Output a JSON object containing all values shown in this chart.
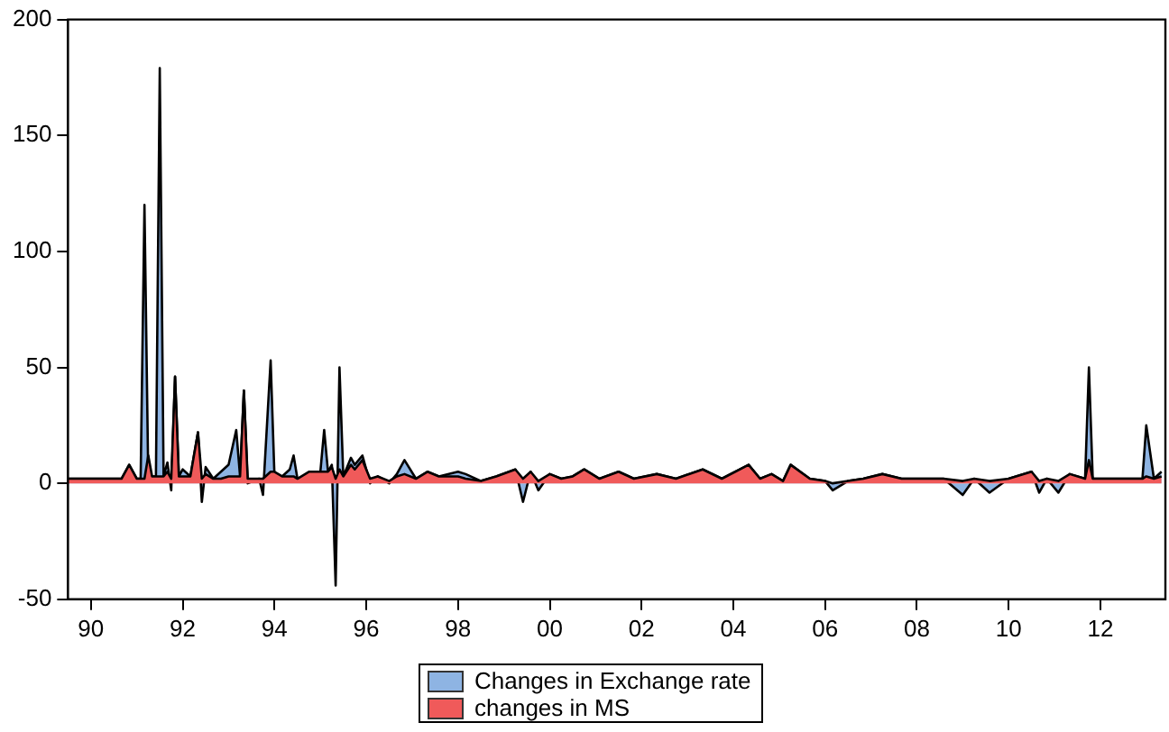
{
  "chart_data": {
    "type": "area",
    "x": [
      "1990-01",
      "1990-07",
      "1991-03",
      "1991-05",
      "1991-07",
      "1991-08",
      "1991-09",
      "1991-10",
      "1991-11",
      "1991-12",
      "1992-01",
      "1992-02",
      "1992-03",
      "1992-04",
      "1992-05",
      "1992-06",
      "1992-07",
      "1992-09",
      "1992-11",
      "1992-12",
      "1993-01",
      "1993-03",
      "1993-05",
      "1993-07",
      "1993-09",
      "1993-10",
      "1993-11",
      "1993-12",
      "1994-03",
      "1994-04",
      "1994-06",
      "1994-07",
      "1994-09",
      "1994-11",
      "1994-12",
      "1995-01",
      "1995-04",
      "1995-07",
      "1995-08",
      "1995-09",
      "1995-10",
      "1995-11",
      "1995-12",
      "1996-01",
      "1996-03",
      "1996-04",
      "1996-06",
      "1996-08",
      "1996-10",
      "1997-01",
      "1997-03",
      "1997-05",
      "1997-08",
      "1997-11",
      "1998-02",
      "1998-07",
      "1998-09",
      "1999-01",
      "1999-05",
      "1999-10",
      "1999-12",
      "2000-02",
      "2000-04",
      "2000-07",
      "2000-10",
      "2001-01",
      "2001-04",
      "2001-08",
      "2002-01",
      "2002-05",
      "2002-11",
      "2003-04",
      "2003-11",
      "2004-04",
      "2004-11",
      "2005-02",
      "2005-05",
      "2005-08",
      "2005-10",
      "2006-03",
      "2006-07",
      "2006-09",
      "2007-01",
      "2007-05",
      "2007-10",
      "2008-03",
      "2008-09",
      "2009-02",
      "2009-07",
      "2009-10",
      "2010-02",
      "2010-07",
      "2011-01",
      "2011-03",
      "2011-05",
      "2011-08",
      "2011-11",
      "2012-03",
      "2012-04",
      "2012-05",
      "2012-10",
      "2013-03",
      "2013-06",
      "2013-07",
      "2013-09",
      "2013-11"
    ],
    "xlim": [
      "1990-01",
      "2013-12"
    ],
    "xticks": [
      {
        "value": "1990-07",
        "label": "90"
      },
      {
        "value": "1992-07",
        "label": "92"
      },
      {
        "value": "1994-07",
        "label": "94"
      },
      {
        "value": "1996-07",
        "label": "96"
      },
      {
        "value": "1998-07",
        "label": "98"
      },
      {
        "value": "2000-07",
        "label": "00"
      },
      {
        "value": "2002-07",
        "label": "02"
      },
      {
        "value": "2004-07",
        "label": "04"
      },
      {
        "value": "2006-07",
        "label": "06"
      },
      {
        "value": "2008-07",
        "label": "08"
      },
      {
        "value": "2010-07",
        "label": "10"
      },
      {
        "value": "2012-07",
        "label": "12"
      }
    ],
    "ylim": [
      -50,
      200
    ],
    "yticks": [
      -50,
      0,
      50,
      100,
      150,
      200
    ],
    "legend": "bottom",
    "series": [
      {
        "name": "Changes in Exchange rate",
        "color": "#8eb4e3",
        "values": [
          2,
          2,
          2,
          8,
          2,
          2,
          120,
          2,
          3,
          3,
          179,
          3,
          9,
          -3,
          46,
          3,
          6,
          3,
          22,
          -8,
          7,
          2,
          5,
          8,
          23,
          3,
          40,
          0,
          2,
          -5,
          53,
          3,
          3,
          6,
          12,
          2,
          4,
          5,
          23,
          5,
          8,
          -44,
          50,
          3,
          11,
          8,
          12,
          0,
          3,
          0,
          4,
          10,
          2,
          5,
          3,
          5,
          4,
          1,
          3,
          6,
          -8,
          5,
          -3,
          4,
          2,
          3,
          6,
          2,
          5,
          2,
          4,
          2,
          6,
          2,
          8,
          2,
          4,
          1,
          8,
          2,
          1,
          -3,
          1,
          2,
          4,
          2,
          2,
          2,
          -5,
          2,
          -4,
          2,
          5,
          -4,
          2,
          -4,
          4,
          2,
          50,
          2,
          2,
          2,
          2,
          25,
          2,
          5
        ]
      },
      {
        "name": "changes in MS",
        "color": "#f05a5a",
        "values": [
          2,
          2,
          2,
          8,
          2,
          2,
          2,
          12,
          3,
          3,
          3,
          3,
          5,
          2,
          46,
          3,
          3,
          3,
          22,
          2,
          4,
          2,
          2,
          3,
          3,
          3,
          40,
          2,
          2,
          2,
          5,
          5,
          3,
          3,
          3,
          2,
          5,
          5,
          5,
          5,
          7,
          2,
          6,
          3,
          8,
          6,
          10,
          2,
          3,
          1,
          3,
          4,
          2,
          5,
          3,
          3,
          2,
          1,
          3,
          6,
          2,
          5,
          1,
          4,
          2,
          3,
          6,
          2,
          5,
          2,
          4,
          2,
          6,
          2,
          8,
          2,
          4,
          1,
          8,
          2,
          1,
          0,
          1,
          2,
          4,
          2,
          2,
          2,
          1,
          2,
          1,
          2,
          5,
          1,
          2,
          1,
          4,
          2,
          10,
          2,
          2,
          2,
          2,
          3,
          2,
          3
        ]
      }
    ]
  }
}
